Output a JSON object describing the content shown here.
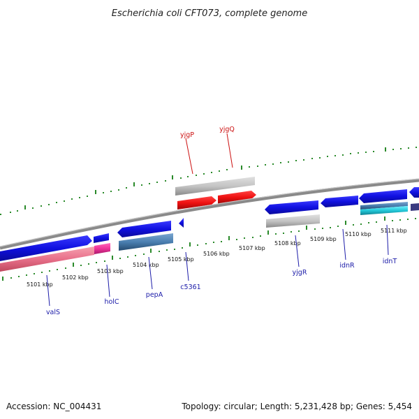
{
  "title": "Escherichia coli CFT073, complete genome",
  "footer": {
    "accession": "Accession: NC_004431",
    "topology": "Topology: circular; Length: 5,231,428 bp; Genes: 5,454"
  },
  "kbp_labels": [
    "5101 kbp",
    "5102 kbp",
    "5103 kbp",
    "5104 kbp",
    "5105 kbp",
    "5106 kbp",
    "5107 kbp",
    "5108 kbp",
    "5109 kbp",
    "5110 kbp",
    "5111 kbp"
  ],
  "genes": {
    "valS": "valS",
    "holC": "holC",
    "pepA": "pepA",
    "c5361": "c5361",
    "yjgR": "yjgR",
    "idnR": "idnR",
    "idnT": "idnT",
    "yjgP": "yjgP",
    "yjgQ": "yjgQ"
  },
  "colors": {
    "cds_blue": "#1010e0",
    "cds_red": "#ee1111",
    "pink": "#e8708a",
    "magenta": "#ee3399",
    "steel": "#4a7fb0",
    "cyan": "#22c8d8",
    "gray": "#bdbdbd",
    "backbone": "#8a8a8a",
    "tick_green": "#2a8a2a",
    "label_blue": "#1a1aa8",
    "label_red": "#cc1111"
  }
}
